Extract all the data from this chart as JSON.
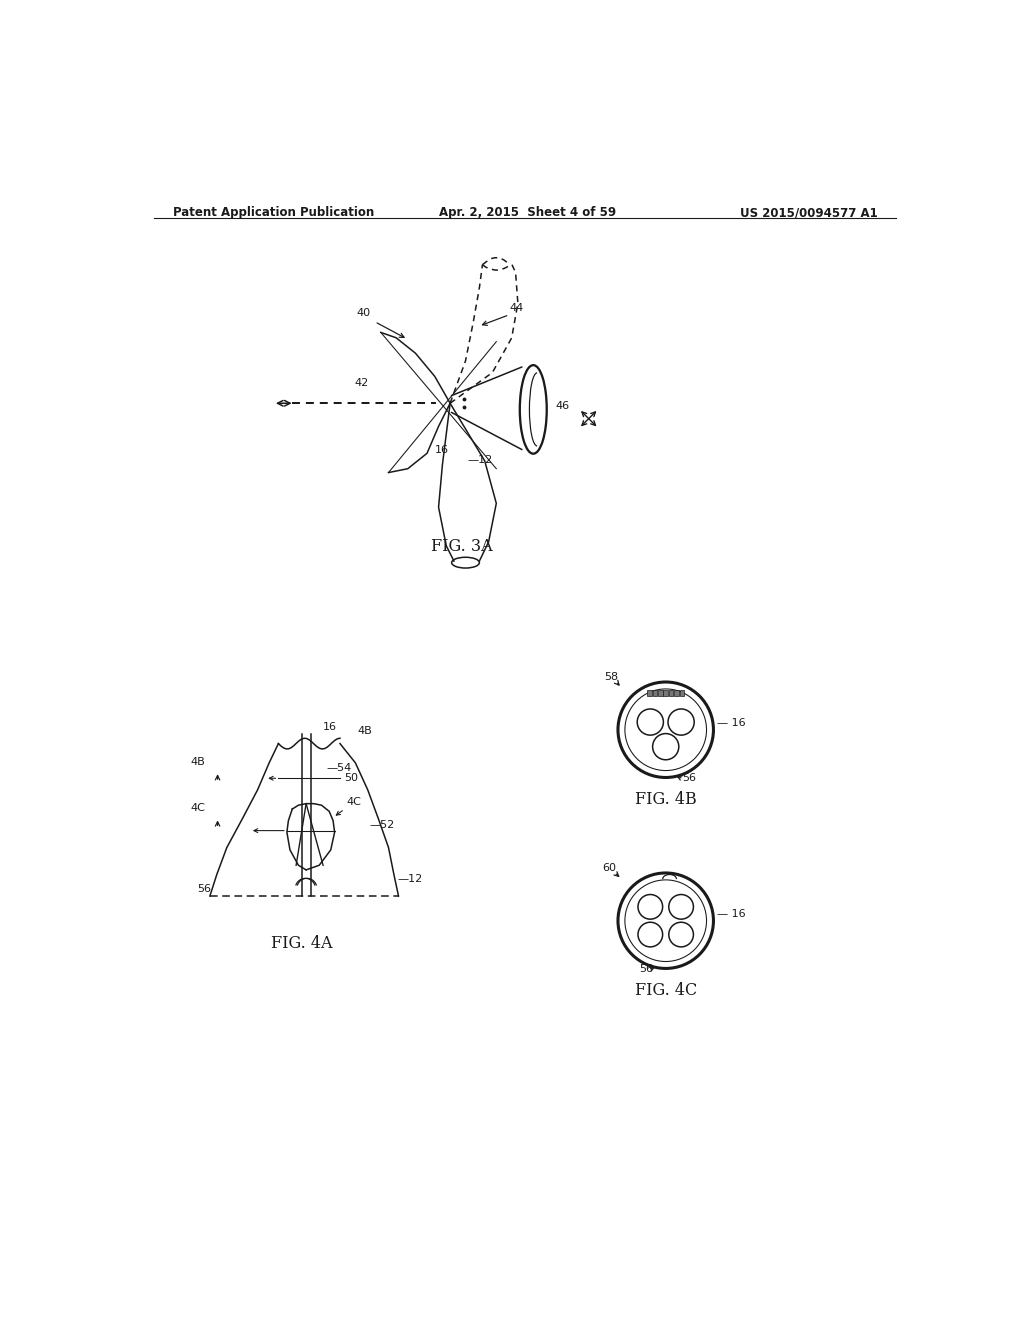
{
  "title_left": "Patent Application Publication",
  "title_mid": "Apr. 2, 2015  Sheet 4 of 59",
  "title_right": "US 2015/0094577 A1",
  "fig3a_label": "FIG. 3A",
  "fig4a_label": "FIG. 4A",
  "fig4b_label": "FIG. 4B",
  "fig4c_label": "FIG. 4C",
  "bg_color": "#ffffff",
  "line_color": "#1a1a1a",
  "line_width": 1.1
}
